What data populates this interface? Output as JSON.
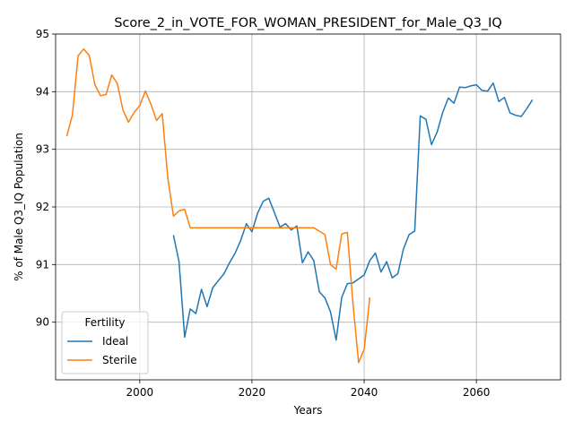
{
  "chart_data": {
    "type": "line",
    "title": "Score_2_in_VOTE_FOR_WOMAN_PRESIDENT_for_Male_Q3_IQ",
    "xlabel": "Years",
    "ylabel": "% of Male Q3_IQ Population",
    "xlim": [
      1985,
      2075
    ],
    "ylim": [
      89.0,
      95.0
    ],
    "xticks": [
      "2000",
      "2020",
      "2040",
      "2060"
    ],
    "xtick_values": [
      2000,
      2020,
      2040,
      2060
    ],
    "yticks": [
      "90",
      "91",
      "92",
      "93",
      "94",
      "95"
    ],
    "ytick_values": [
      90,
      91,
      92,
      93,
      94,
      95
    ],
    "grid": true,
    "legend": {
      "title": "Fertility",
      "position": "lower-left"
    },
    "series": [
      {
        "name": "Ideal",
        "color": "#1f77b4",
        "x": [
          2006,
          2007,
          2008,
          2009,
          2010,
          2011,
          2012,
          2013,
          2014,
          2015,
          2016,
          2017,
          2018,
          2019,
          2020,
          2021,
          2022,
          2023,
          2024,
          2025,
          2026,
          2027,
          2028,
          2029,
          2030,
          2031,
          2032,
          2033,
          2034,
          2035,
          2036,
          2037,
          2038,
          2039,
          2040,
          2041,
          2042,
          2043,
          2044,
          2045,
          2046,
          2047,
          2048,
          2049,
          2050,
          2051,
          2052,
          2053,
          2054,
          2055,
          2056,
          2057,
          2058,
          2059,
          2060,
          2061,
          2062,
          2063,
          2064,
          2065,
          2066,
          2067,
          2068,
          2069,
          2070
        ],
        "y": [
          91.51,
          91.05,
          89.74,
          90.23,
          90.15,
          90.57,
          90.27,
          90.6,
          90.72,
          90.84,
          91.03,
          91.2,
          91.42,
          91.71,
          91.57,
          91.89,
          92.1,
          92.15,
          91.9,
          91.65,
          91.71,
          91.6,
          91.67,
          91.03,
          91.22,
          91.07,
          90.53,
          90.42,
          90.18,
          89.69,
          90.43,
          90.67,
          90.68,
          90.75,
          90.82,
          91.07,
          91.2,
          90.87,
          91.05,
          90.77,
          90.84,
          91.27,
          91.52,
          91.58,
          93.58,
          93.52,
          93.08,
          93.3,
          93.64,
          93.89,
          93.8,
          94.08,
          94.07,
          94.1,
          94.12,
          94.02,
          94.01,
          94.15,
          93.83,
          93.9,
          93.63,
          93.59,
          93.57,
          93.71,
          93.86
        ]
      },
      {
        "name": "Sterile",
        "color": "#ff7f0e",
        "x": [
          1987,
          1988,
          1989,
          1990,
          1991,
          1992,
          1993,
          1994,
          1995,
          1996,
          1997,
          1998,
          1999,
          2000,
          2001,
          2002,
          2003,
          2004,
          2005,
          2006,
          2007,
          2008,
          2009,
          2010,
          2011,
          2012,
          2013,
          2014,
          2015,
          2016,
          2017,
          2018,
          2019,
          2020,
          2021,
          2022,
          2023,
          2024,
          2025,
          2026,
          2027,
          2028,
          2029,
          2030,
          2031,
          2032,
          2033,
          2034,
          2035,
          2036,
          2037,
          2038,
          2039,
          2040,
          2041
        ],
        "y": [
          93.23,
          93.6,
          94.62,
          94.74,
          94.63,
          94.12,
          93.93,
          93.95,
          94.29,
          94.14,
          93.68,
          93.47,
          93.64,
          93.76,
          94.01,
          93.78,
          93.5,
          93.62,
          92.5,
          91.84,
          91.93,
          91.96,
          91.64,
          91.64,
          91.64,
          91.64,
          91.64,
          91.64,
          91.64,
          91.64,
          91.64,
          91.64,
          91.64,
          91.64,
          91.64,
          91.64,
          91.64,
          91.64,
          91.64,
          91.64,
          91.64,
          91.64,
          91.64,
          91.64,
          91.64,
          91.58,
          91.52,
          91.0,
          90.92,
          91.53,
          91.56,
          90.33,
          89.3,
          89.53,
          90.43
        ]
      }
    ]
  }
}
